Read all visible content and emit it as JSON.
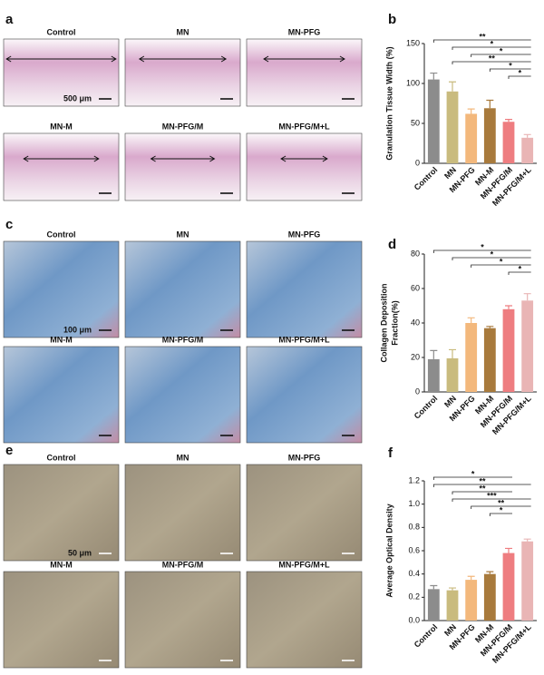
{
  "panels": [
    {
      "letter": "a",
      "image_labels": [
        "Control",
        "MN",
        "MN-PFG",
        "MN-M",
        "MN-PFG/M",
        "MN-PFG/M+L"
      ],
      "scale_bar": "500 μm"
    },
    {
      "letter": "c",
      "image_labels": [
        "Control",
        "MN",
        "MN-PFG",
        "MN-M",
        "MN-PFG/M",
        "MN-PFG/M+L"
      ],
      "scale_bar": "100 μm"
    },
    {
      "letter": "e",
      "image_labels": [
        "Control",
        "MN",
        "MN-PFG",
        "MN-M",
        "MN-PFG/M",
        "MN-PFG/M+L"
      ],
      "scale_bar": "50 μm"
    }
  ],
  "chart_data": [
    {
      "type": "bar",
      "letter": "b",
      "ylabel": [
        "Granulation Tissue Width (%)"
      ],
      "categories": [
        "Control",
        "MN",
        "MN-PFG",
        "MN-M",
        "MN-PFG/M",
        "MN-PFG/M+L"
      ],
      "values": [
        105,
        90,
        62,
        69,
        52,
        32
      ],
      "errors": [
        8,
        12,
        6,
        10,
        3,
        4
      ],
      "colors": [
        "#8c8c8c",
        "#c9bb7e",
        "#f3b87c",
        "#a87a3c",
        "#ee7d80",
        "#e9b5b5"
      ],
      "ylim": [
        0,
        150
      ],
      "yticks": [
        0,
        50,
        100,
        150
      ],
      "significance": [
        {
          "from": 0,
          "to": 5,
          "label": "**"
        },
        {
          "from": 1,
          "to": 5,
          "label": "*"
        },
        {
          "from": 2,
          "to": 5,
          "label": "*"
        },
        {
          "from": 1,
          "to": 5,
          "label": "**"
        },
        {
          "from": 3,
          "to": 5,
          "label": "*"
        },
        {
          "from": 4,
          "to": 5,
          "label": "*"
        }
      ]
    },
    {
      "type": "bar",
      "letter": "d",
      "ylabel": [
        "Collagen Deposition",
        "Fraction(%)"
      ],
      "categories": [
        "Control",
        "MN",
        "MN-PFG",
        "MN-M",
        "MN-PFG/M",
        "MN-PFG/M+L"
      ],
      "values": [
        19,
        19.5,
        40,
        37,
        48,
        53
      ],
      "errors": [
        5,
        5,
        3,
        1,
        2,
        4
      ],
      "colors": [
        "#8c8c8c",
        "#c9bb7e",
        "#f3b87c",
        "#a87a3c",
        "#ee7d80",
        "#e9b5b5"
      ],
      "ylim": [
        0,
        80
      ],
      "yticks": [
        0,
        20,
        40,
        60,
        80
      ],
      "significance": [
        {
          "from": 0,
          "to": 5,
          "label": "*"
        },
        {
          "from": 1,
          "to": 5,
          "label": "*"
        },
        {
          "from": 2,
          "to": 5,
          "label": "*"
        },
        {
          "from": 4,
          "to": 5,
          "label": "*"
        }
      ]
    },
    {
      "type": "bar",
      "letter": "f",
      "ylabel": [
        "Average Optical Density"
      ],
      "categories": [
        "Control",
        "MN",
        "MN-PFG",
        "MN-M",
        "MN-PFG/M",
        "MN-PFG/M+L"
      ],
      "values": [
        0.27,
        0.26,
        0.35,
        0.4,
        0.58,
        0.68
      ],
      "errors": [
        0.03,
        0.02,
        0.03,
        0.02,
        0.04,
        0.02
      ],
      "colors": [
        "#8c8c8c",
        "#c9bb7e",
        "#f3b87c",
        "#a87a3c",
        "#ee7d80",
        "#e9b5b5"
      ],
      "ylim": [
        0,
        1.2
      ],
      "yticks": [
        {
          "value": 0,
          "label": "0.0"
        },
        {
          "value": 0.2,
          "label": "0.2"
        },
        {
          "value": 0.4,
          "label": "0.4"
        },
        {
          "value": 0.6,
          "label": "0.6"
        },
        {
          "value": 0.8,
          "label": "0.8"
        },
        {
          "value": 1,
          "label": "1.0"
        },
        {
          "value": 1.2,
          "label": "1.2"
        }
      ],
      "significance": [
        {
          "from": 0,
          "to": 4,
          "label": "*"
        },
        {
          "from": 0,
          "to": 5,
          "label": "**"
        },
        {
          "from": 1,
          "to": 4,
          "label": "**"
        },
        {
          "from": 1,
          "to": 5,
          "label": "***"
        },
        {
          "from": 2,
          "to": 5,
          "label": "**"
        },
        {
          "from": 3,
          "to": 4,
          "label": "*"
        }
      ]
    }
  ]
}
